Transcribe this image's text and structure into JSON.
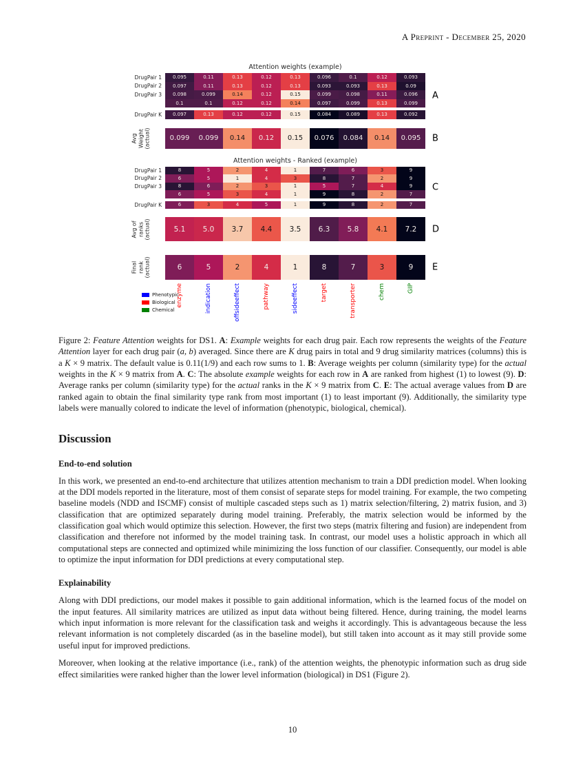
{
  "header": {
    "running_title": "A Preprint - December 25, 2020"
  },
  "page_number": "10",
  "figure": {
    "chart_data": [
      {
        "type": "heatmap",
        "panel": "A",
        "title": "Attention weights (example)",
        "row_labels": [
          "DrugPair 1",
          "DrugPair 2",
          "DrugPair 3",
          "",
          "DrugPair K"
        ],
        "values": [
          [
            "0.095",
            "0.11",
            "0.13",
            "0.12",
            "0.13",
            "0.096",
            "0.1",
            "0.12",
            "0.093"
          ],
          [
            "0.097",
            "0.11",
            "0.13",
            "0.12",
            "0.13",
            "0.093",
            "0.093",
            "0.13",
            "0.09"
          ],
          [
            "0.098",
            "0.099",
            "0.14",
            "0.12",
            "0.15",
            "0.099",
            "0.098",
            "0.11",
            "0.096"
          ],
          [
            "0.1",
            "0.1",
            "0.12",
            "0.12",
            "0.14",
            "0.097",
            "0.099",
            "0.13",
            "0.099"
          ],
          [
            "0.097",
            "0.13",
            "0.12",
            "0.12",
            "0.15",
            "0.084",
            "0.089",
            "0.13",
            "0.092"
          ]
        ],
        "vmin": 0.084,
        "vmax": 0.15,
        "invert": false
      },
      {
        "type": "heatmap",
        "panel": "B",
        "side_label": "Avg\nWeight\n(actual)",
        "values": [
          [
            "0.099",
            "0.099",
            "0.14",
            "0.12",
            "0.15",
            "0.076",
            "0.084",
            "0.14",
            "0.095"
          ]
        ],
        "vmin": 0.076,
        "vmax": 0.15,
        "invert": false
      },
      {
        "type": "heatmap",
        "panel": "C",
        "title": "Attention weights - Ranked (example)",
        "row_labels": [
          "DrugPair 1",
          "DrugPair 2",
          "DrugPair 3",
          "",
          "DrugPair K"
        ],
        "values": [
          [
            "8",
            "5",
            "2",
            "4",
            "1",
            "7",
            "6",
            "3",
            "9"
          ],
          [
            "6",
            "5",
            "1",
            "4",
            "3",
            "8",
            "7",
            "2",
            "9"
          ],
          [
            "8",
            "6",
            "2",
            "3",
            "1",
            "5",
            "7",
            "4",
            "9"
          ],
          [
            "6",
            "5",
            "3",
            "4",
            "1",
            "9",
            "8",
            "2",
            "7"
          ],
          [
            "6",
            "3",
            "4",
            "5",
            "1",
            "9",
            "8",
            "2",
            "7"
          ]
        ],
        "vmin": 1,
        "vmax": 9,
        "invert": true
      },
      {
        "type": "heatmap",
        "panel": "D",
        "side_label": "Avg of\nranks\n(actual)",
        "values": [
          [
            "5.1",
            "5.0",
            "3.7",
            "4.4",
            "3.5",
            "6.3",
            "5.8",
            "4.1",
            "7.2"
          ]
        ],
        "vmin": 3.5,
        "vmax": 7.2,
        "invert": true
      },
      {
        "type": "heatmap",
        "panel": "E",
        "side_label": "Final\nrank\n(actual)",
        "values": [
          [
            "6",
            "5",
            "2",
            "4",
            "1",
            "8",
            "7",
            "3",
            "9"
          ]
        ],
        "vmin": 1,
        "vmax": 9,
        "invert": true
      }
    ],
    "columns": [
      {
        "label": "enzyme",
        "color": "#ff0000"
      },
      {
        "label": "indication",
        "color": "#0000ff"
      },
      {
        "label": "offsideeffect",
        "color": "#0000ff"
      },
      {
        "label": "pathway",
        "color": "#ff0000"
      },
      {
        "label": "sideeffect",
        "color": "#0000ff"
      },
      {
        "label": "target",
        "color": "#ff0000"
      },
      {
        "label": "transporter",
        "color": "#ff0000"
      },
      {
        "label": "chem",
        "color": "#008000"
      },
      {
        "label": "GIP",
        "color": "#008000"
      }
    ],
    "legend": [
      {
        "label": "Phenotypic",
        "color": "#0000ff"
      },
      {
        "label": "Biological",
        "color": "#ff0000"
      },
      {
        "label": "Chemical",
        "color": "#008000"
      }
    ]
  },
  "caption_segments": [
    {
      "t": "Figure 2: ",
      "s": ""
    },
    {
      "t": "Feature Attention",
      "s": "i"
    },
    {
      "t": " weights for DS1. ",
      "s": ""
    },
    {
      "t": "A",
      "s": "b"
    },
    {
      "t": ": ",
      "s": ""
    },
    {
      "t": "Example",
      "s": "i"
    },
    {
      "t": " weights for each drug pair. Each row represents the weights of the ",
      "s": ""
    },
    {
      "t": "Feature Attention",
      "s": "i"
    },
    {
      "t": " layer for each drug pair (",
      "s": ""
    },
    {
      "t": "a, b",
      "s": "i"
    },
    {
      "t": ") averaged. Since there are ",
      "s": ""
    },
    {
      "t": "K",
      "s": "i"
    },
    {
      "t": " drug pairs in total and 9 drug similarity matrices (columns) this is a ",
      "s": ""
    },
    {
      "t": "K",
      "s": "i"
    },
    {
      "t": " × 9 matrix. The default value is 0.11(1/9) and each row sums to 1. ",
      "s": ""
    },
    {
      "t": "B",
      "s": "b"
    },
    {
      "t": ": Average weights per column (similarity type) for the ",
      "s": ""
    },
    {
      "t": "actual",
      "s": "i"
    },
    {
      "t": " weights in the ",
      "s": ""
    },
    {
      "t": "K",
      "s": "i"
    },
    {
      "t": " × 9 matrix from ",
      "s": ""
    },
    {
      "t": "A",
      "s": "b"
    },
    {
      "t": ". ",
      "s": ""
    },
    {
      "t": "C",
      "s": "b"
    },
    {
      "t": ": The absolute ",
      "s": ""
    },
    {
      "t": "example",
      "s": "i"
    },
    {
      "t": " weights for each row in ",
      "s": ""
    },
    {
      "t": "A",
      "s": "b"
    },
    {
      "t": " are ranked from highest (1) to lowest (9). ",
      "s": ""
    },
    {
      "t": "D",
      "s": "b"
    },
    {
      "t": ": Average ranks per column (similarity type) for the ",
      "s": ""
    },
    {
      "t": "actual",
      "s": "i"
    },
    {
      "t": " ranks in the ",
      "s": ""
    },
    {
      "t": "K",
      "s": "i"
    },
    {
      "t": " × 9 matrix from ",
      "s": ""
    },
    {
      "t": "C",
      "s": "b"
    },
    {
      "t": ". ",
      "s": ""
    },
    {
      "t": "E",
      "s": "b"
    },
    {
      "t": ": The actual average values from ",
      "s": ""
    },
    {
      "t": "D",
      "s": "b"
    },
    {
      "t": " are ranked again to obtain the final similarity type rank from most important (1) to least important (9). Additionally, the similarity type labels were manually colored to indicate the level of information (phenotypic, biological, chemical).",
      "s": ""
    }
  ],
  "discussion": {
    "heading": "Discussion",
    "subsections": [
      {
        "heading": "End-to-end solution",
        "paragraphs": [
          "In this work, we presented an end-to-end architecture that utilizes attention mechanism to train a DDI prediction model. When looking at the DDI models reported in the literature, most of them consist of separate steps for model training. For example, the two competing baseline models (NDD and ISCMF) consist of multiple cascaded steps such as 1) matrix selection/filtering, 2) matrix fusion, and 3) classification that are optimized separately during model training. Preferably, the matrix selection would be informed by the classification goal which would optimize this selection. However, the first two steps (matrix filtering and fusion) are independent from classification and therefore not informed by the model training task. In contrast, our model uses a holistic approach in which all computational steps are connected and optimized while minimizing the loss function of our classifier. Consequently, our model is able to optimize the input information for DDI predictions at every computational step."
        ]
      },
      {
        "heading": "Explainability",
        "paragraphs": [
          "Along with DDI predictions, our model makes it possible to gain additional information, which is the learned focus of the model on the input features. All similarity matrices are utilized as input data without being filtered. Hence, during training, the model learns which input information is more relevant for the classification task and weighs it accordingly. This is advantageous because the less relevant information is not completely discarded (as in the baseline model), but still taken into account as it may still provide some useful input for improved predictions.",
          "Moreover, when looking at the relative importance (i.e., rank) of the attention weights, the phenotypic information such as drug side effect similarities were ranked higher than the lower level information (biological) in DS1 (Figure 2)."
        ]
      }
    ]
  }
}
